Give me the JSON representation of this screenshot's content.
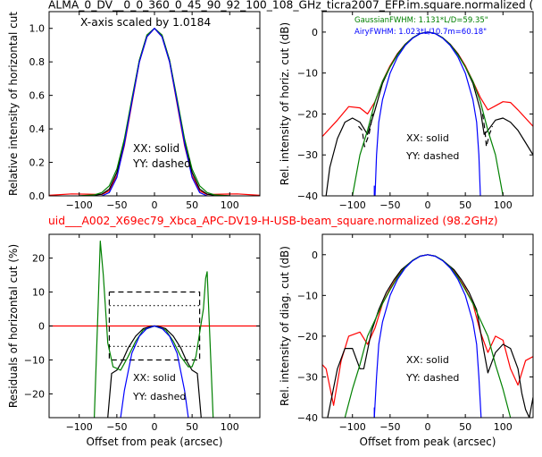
{
  "header": {
    "top_title": "ALMA_0_DV__0_0_360_0_45_90_92_100_108_GHz_ticra2007_EFP.im.square.normalized (",
    "mid_title": "uid___A002_X69ec79_Xbca_APC-DV19-H-USB-beam_square.normalized (98.2GHz)",
    "mid_title_color": "#ff0000"
  },
  "chart_data": [
    {
      "type": "line",
      "id": "tl",
      "xlabel": "",
      "ylabel": "Relative intensity of horizontal cut",
      "xlim": [
        -140,
        140
      ],
      "ylim": [
        0,
        1.1
      ],
      "xticks": [
        -100,
        -50,
        0,
        50,
        100
      ],
      "yticks": [
        0.0,
        0.2,
        0.4,
        0.6,
        0.8,
        1.0
      ],
      "ytick_labels": [
        "0.0",
        "0.2",
        "0.4",
        "0.6",
        "0.8",
        "1.0"
      ],
      "annotations": [
        "X-axis scaled by 1.0184",
        "XX: solid",
        "YY: dashed"
      ],
      "series": [
        {
          "color": "#ff0000",
          "style": "solid",
          "x": [
            -140,
            -110,
            -90,
            -70,
            -60,
            -50,
            -40,
            -30,
            -20,
            -10,
            0,
            10,
            20,
            30,
            40,
            50,
            60,
            70,
            90,
            110,
            140
          ],
          "y": [
            0.003,
            0.012,
            0.01,
            0.008,
            0.03,
            0.12,
            0.3,
            0.55,
            0.8,
            0.95,
            1.0,
            0.95,
            0.8,
            0.55,
            0.3,
            0.12,
            0.03,
            0.008,
            0.01,
            0.012,
            0.003
          ]
        },
        {
          "color": "#000000",
          "style": "solid",
          "x": [
            -100,
            -80,
            -70,
            -60,
            -50,
            -40,
            -30,
            -20,
            -10,
            0,
            10,
            20,
            30,
            40,
            50,
            60,
            70,
            80,
            100
          ],
          "y": [
            0.0,
            0.004,
            0.01,
            0.04,
            0.14,
            0.33,
            0.57,
            0.81,
            0.96,
            1.0,
            0.96,
            0.81,
            0.57,
            0.33,
            0.14,
            0.04,
            0.01,
            0.004,
            0.0
          ]
        },
        {
          "color": "#008000",
          "style": "solid",
          "x": [
            -100,
            -80,
            -70,
            -60,
            -50,
            -40,
            -30,
            -20,
            -10,
            0,
            10,
            20,
            30,
            40,
            50,
            60,
            70,
            80,
            100
          ],
          "y": [
            0.0,
            0.006,
            0.02,
            0.06,
            0.16,
            0.34,
            0.58,
            0.81,
            0.96,
            1.0,
            0.96,
            0.81,
            0.58,
            0.34,
            0.16,
            0.06,
            0.02,
            0.006,
            0.0
          ]
        },
        {
          "color": "#0000ff",
          "style": "solid",
          "x": [
            -70,
            -60,
            -50,
            -40,
            -30,
            -20,
            -10,
            0,
            10,
            20,
            30,
            40,
            50,
            60,
            70
          ],
          "y": [
            0.0,
            0.02,
            0.11,
            0.31,
            0.56,
            0.8,
            0.95,
            1.0,
            0.95,
            0.8,
            0.56,
            0.31,
            0.11,
            0.02,
            0.0
          ]
        }
      ]
    },
    {
      "type": "line",
      "id": "tr",
      "xlabel": "",
      "ylabel": "Rel. intensity of horiz. cut (dB)",
      "xlim": [
        -140,
        140
      ],
      "ylim": [
        -40,
        5
      ],
      "xticks": [
        -100,
        -50,
        0,
        50,
        100
      ],
      "yticks": [
        0,
        -10,
        -20,
        -30,
        -40
      ],
      "ytick_labels": [
        "0",
        "−10",
        "−20",
        "−30",
        "−40"
      ],
      "legend": [
        {
          "label": "GaussianFWHM: 1.131*L/D=59.35\"",
          "color": "#008000"
        },
        {
          "label": "AiryFWHM: 1.023*L/10.7m=60.18\"",
          "color": "#0000ff"
        }
      ],
      "annotations": [
        "XX: solid",
        "YY: dashed"
      ],
      "series": [
        {
          "color": "#ff0000",
          "style": "solid",
          "x": [
            -140,
            -120,
            -105,
            -90,
            -80,
            -70,
            -60,
            -50,
            -40,
            -30,
            -20,
            -10,
            0,
            10,
            20,
            30,
            40,
            50,
            60,
            70,
            80,
            90,
            100,
            110,
            120,
            140
          ],
          "y": [
            -25.5,
            -21.5,
            -18.2,
            -18.5,
            -20,
            -17,
            -12,
            -8.2,
            -5.2,
            -3,
            -1.4,
            -0.35,
            0,
            -0.35,
            -1.4,
            -3,
            -5.2,
            -8.2,
            -12,
            -16,
            -19,
            -18,
            -17,
            -17.2,
            -19,
            -23
          ]
        },
        {
          "color": "#000000",
          "style": "solid",
          "x": [
            -135,
            -130,
            -120,
            -110,
            -100,
            -90,
            -80,
            -70,
            -60,
            -50,
            -40,
            -30,
            -20,
            -10,
            0,
            10,
            20,
            30,
            40,
            50,
            60,
            70,
            75,
            80,
            90,
            100,
            110,
            120,
            130,
            140
          ],
          "y": [
            -40,
            -33,
            -26,
            -22,
            -21,
            -22,
            -25,
            -19,
            -12.5,
            -8.5,
            -5.3,
            -3,
            -1.4,
            -0.35,
            0,
            -0.35,
            -1.4,
            -3,
            -5.3,
            -8.5,
            -12.5,
            -19,
            -25,
            -24,
            -21.5,
            -21,
            -22,
            -24,
            -27,
            -30
          ]
        },
        {
          "color": "#000000",
          "style": "dashed",
          "x": [
            -92,
            -87,
            -84,
            -78,
            -73
          ],
          "y": [
            -23,
            -24,
            -28,
            -25,
            -20
          ]
        },
        {
          "color": "#000000",
          "style": "dashed",
          "x": [
            73,
            76,
            78,
            82,
            86
          ],
          "y": [
            -20,
            -24,
            -28,
            -25,
            -23
          ]
        },
        {
          "color": "#008000",
          "style": "solid",
          "x": [
            -100,
            -90,
            -80,
            -70,
            -60,
            -50,
            -40,
            -30,
            -20,
            -10,
            0,
            10,
            20,
            30,
            40,
            50,
            60,
            70,
            80,
            90,
            100
          ],
          "y": [
            -40,
            -30,
            -24,
            -17,
            -12,
            -8.5,
            -5.5,
            -3.1,
            -1.4,
            -0.34,
            0,
            -0.34,
            -1.4,
            -3.1,
            -5.5,
            -8.5,
            -12,
            -17,
            -24,
            -30,
            -40
          ]
        },
        {
          "color": "#0000ff",
          "style": "solid",
          "x": [
            -70,
            -68,
            -65,
            -60,
            -50,
            -40,
            -30,
            -20,
            -10,
            0,
            10,
            20,
            30,
            40,
            50,
            60,
            65,
            68,
            70
          ],
          "y": [
            -40,
            -30,
            -22,
            -16.5,
            -10,
            -6,
            -3.3,
            -1.5,
            -0.37,
            0,
            -0.37,
            -1.5,
            -3.3,
            -6,
            -10,
            -16.5,
            -22,
            -30,
            -40
          ]
        },
        {
          "color": "#0000ff",
          "style": "solid",
          "x": [
            -71,
            -71
          ],
          "y": [
            -37.5,
            -40
          ]
        }
      ]
    },
    {
      "type": "line",
      "id": "bl",
      "xlabel": "Offset from peak (arcsec)",
      "ylabel": "Residuals of horizontal cut (%)",
      "xlim": [
        -140,
        140
      ],
      "ylim": [
        -27,
        27
      ],
      "xticks": [
        -100,
        -50,
        0,
        50,
        100
      ],
      "yticks": [
        20,
        10,
        0,
        -10,
        -20
      ],
      "ytick_labels": [
        "20",
        "10",
        "0",
        "−10",
        "−20"
      ],
      "annotations": [
        "XX: solid",
        "YY: dashed"
      ],
      "series": [
        {
          "color": "#ff0000",
          "style": "solid",
          "x": [
            -140,
            140
          ],
          "y": [
            0,
            0
          ]
        },
        {
          "color": "#000000",
          "style": "dashed",
          "x": [
            -60,
            60,
            60,
            -60,
            -60
          ],
          "y": [
            10,
            10,
            -10,
            -10,
            10
          ]
        },
        {
          "color": "#000000",
          "style": "dotted",
          "x": [
            -60,
            60
          ],
          "y": [
            6,
            6
          ]
        },
        {
          "color": "#000000",
          "style": "dotted",
          "x": [
            -60,
            60
          ],
          "y": [
            -6,
            -6
          ]
        },
        {
          "color": "#000000",
          "style": "solid",
          "x": [
            -62,
            -57,
            -50,
            -42,
            -35,
            -25,
            -15,
            -5,
            0,
            5,
            15,
            25,
            35,
            42,
            50,
            57,
            62
          ],
          "y": [
            -27,
            -14,
            -13,
            -10,
            -6.5,
            -3,
            -0.8,
            -0.1,
            0,
            -0.1,
            -0.8,
            -3,
            -6.5,
            -10,
            -13,
            -14,
            -27
          ]
        },
        {
          "color": "#008000",
          "style": "solid",
          "x": [
            -80,
            -75,
            -72,
            -68,
            -62,
            -55,
            -45,
            -35,
            -25,
            -15,
            0,
            15,
            25,
            35,
            45,
            50,
            55,
            60,
            65,
            68,
            70,
            73,
            78
          ],
          "y": [
            -27,
            5,
            25,
            15,
            -5,
            -12,
            -13,
            -9,
            -4.5,
            -1.2,
            0,
            -1.2,
            -4.5,
            -9,
            -12,
            -12,
            -9,
            -2,
            5,
            14,
            16,
            0,
            -27
          ]
        },
        {
          "color": "#0000ff",
          "style": "solid",
          "x": [
            -45,
            -40,
            -30,
            -20,
            -10,
            0,
            10,
            20,
            30,
            40,
            45
          ],
          "y": [
            -27,
            -19,
            -8,
            -3,
            -0.7,
            0,
            -0.7,
            -3,
            -8,
            -19,
            -27
          ]
        }
      ]
    },
    {
      "type": "line",
      "id": "br",
      "xlabel": "Offset from peak (arcsec)",
      "ylabel": "Rel. intensity of diag. cut (dB)",
      "xlim": [
        -140,
        140
      ],
      "ylim": [
        -40,
        5
      ],
      "xticks": [
        -100,
        -50,
        0,
        50,
        100
      ],
      "yticks": [
        0,
        -10,
        -20,
        -30,
        -40
      ],
      "ytick_labels": [
        "0",
        "−10",
        "−20",
        "−30",
        "−40"
      ],
      "annotations": [
        "XX: solid",
        "YY: dashed"
      ],
      "series": [
        {
          "color": "#ff0000",
          "style": "solid",
          "x": [
            -140,
            -135,
            -125,
            -115,
            -105,
            -90,
            -80,
            -70,
            -60,
            -50,
            -40,
            -30,
            -20,
            -10,
            0,
            10,
            20,
            30,
            40,
            50,
            60,
            70,
            80,
            90,
            100,
            110,
            120,
            130,
            140
          ],
          "y": [
            -27,
            -28,
            -37,
            -26,
            -20,
            -19,
            -22,
            -18,
            -12,
            -8.3,
            -5.3,
            -3,
            -1.4,
            -0.35,
            0,
            -0.35,
            -1.4,
            -3,
            -5.3,
            -8.3,
            -12,
            -19,
            -24,
            -20,
            -21,
            -28,
            -32,
            -26,
            -25
          ]
        },
        {
          "color": "#000000",
          "style": "solid",
          "x": [
            -133,
            -120,
            -110,
            -100,
            -90,
            -85,
            -75,
            -65,
            -55,
            -45,
            -35,
            -20,
            -10,
            0,
            10,
            20,
            35,
            45,
            55,
            65,
            75,
            80,
            90,
            100,
            110,
            120,
            125,
            130,
            135,
            140
          ],
          "y": [
            -40,
            -28,
            -23,
            -23,
            -28,
            -28,
            -19,
            -13.5,
            -9.3,
            -6.2,
            -3.7,
            -1.4,
            -0.35,
            0,
            -0.35,
            -1.4,
            -3.7,
            -6.2,
            -9.3,
            -13.5,
            -24,
            -29,
            -24,
            -22,
            -23,
            -28,
            -34,
            -38,
            -40,
            -35
          ]
        },
        {
          "color": "#008000",
          "style": "solid",
          "x": [
            -110,
            -100,
            -90,
            -80,
            -70,
            -60,
            -50,
            -40,
            -30,
            -20,
            -10,
            0,
            10,
            20,
            30,
            40,
            50,
            60,
            70,
            80,
            90,
            100,
            110
          ],
          "y": [
            -40,
            -33,
            -27,
            -20,
            -16,
            -12,
            -8.6,
            -5.5,
            -3.1,
            -1.4,
            -0.34,
            0,
            -0.34,
            -1.4,
            -3.1,
            -5.5,
            -8.6,
            -12,
            -16,
            -20,
            -27,
            -33,
            -40
          ]
        },
        {
          "color": "#0000ff",
          "style": "solid",
          "x": [
            -71,
            -68,
            -65,
            -60,
            -50,
            -40,
            -30,
            -20,
            -10,
            0,
            10,
            20,
            30,
            40,
            50,
            60,
            65,
            68,
            71
          ],
          "y": [
            -40,
            -30,
            -22,
            -16.5,
            -10,
            -6,
            -3.3,
            -1.5,
            -0.37,
            0,
            -0.37,
            -1.5,
            -3.3,
            -6,
            -10,
            -16.5,
            -22,
            -30,
            -40
          ]
        },
        {
          "color": "#0000ff",
          "style": "solid",
          "x": [
            -71,
            -71
          ],
          "y": [
            -37.5,
            -40
          ]
        }
      ]
    }
  ]
}
